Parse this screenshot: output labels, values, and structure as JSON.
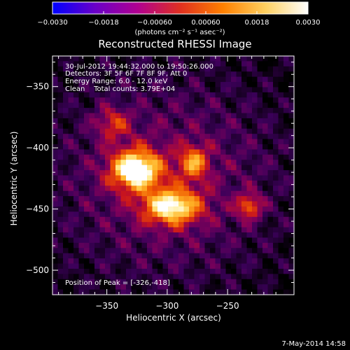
{
  "chart_data": {
    "type": "heatmap",
    "title": "Reconstructed RHESSI Image",
    "xlabel": "Heliocentric X (arcsec)",
    "ylabel": "Heliocentric Y (arcsec)",
    "xlim": [
      -395,
      -195
    ],
    "ylim": [
      -520,
      -325
    ],
    "x_ticks": [
      {
        "value": -350,
        "label": "−350"
      },
      {
        "value": -300,
        "label": "−300"
      },
      {
        "value": -250,
        "label": "−250"
      }
    ],
    "y_ticks": [
      {
        "value": -350,
        "label": "−350"
      },
      {
        "value": -400,
        "label": "−400"
      },
      {
        "value": -450,
        "label": "−450"
      },
      {
        "value": -500,
        "label": "−500"
      }
    ],
    "colorbar": {
      "min": -0.003,
      "max": 0.003,
      "tick_values": [
        -0.003,
        -0.0018,
        -0.0006,
        0.0006,
        0.0018,
        0.003
      ],
      "tick_labels": [
        "−0.0030",
        "−0.0018",
        "−0.00060",
        "0.00060",
        "0.0018",
        "0.0030"
      ],
      "unit_label": "(photons cm⁻² s⁻¹ asec⁻²)",
      "colors": [
        "#0000ff",
        "#6a00c8",
        "#b00090",
        "#e03020",
        "#ff8000",
        "#ffd060",
        "#ffffff"
      ]
    },
    "info_lines": [
      "30-Jul-2012 19:44:32.000 to 19:50:26.000",
      "Detectors: 3F 5F 6F 7F 8F 9F, Att 0",
      "Energy Range: 6.0 - 12.0 keV",
      "Clean    Total counts: 3.79E+04"
    ],
    "peak_label": "Position of Peak = [-326,-418]",
    "peak": [
      -326,
      -418
    ],
    "sources": [
      {
        "x": -326,
        "y": -418,
        "sx": 14,
        "sy": 11,
        "amp": 1.0
      },
      {
        "x": -296,
        "y": -448,
        "sx": 16,
        "sy": 10,
        "amp": 0.85
      },
      {
        "x": -278,
        "y": -412,
        "sx": 8,
        "sy": 9,
        "amp": 0.55
      },
      {
        "x": -232,
        "y": -448,
        "sx": 7,
        "sy": 7,
        "amp": 0.5
      },
      {
        "x": -345,
        "y": -380,
        "sx": 10,
        "sy": 9,
        "amp": 0.35
      }
    ],
    "background_level": 0.3
  },
  "footer_date": "7-May-2014 14:58"
}
